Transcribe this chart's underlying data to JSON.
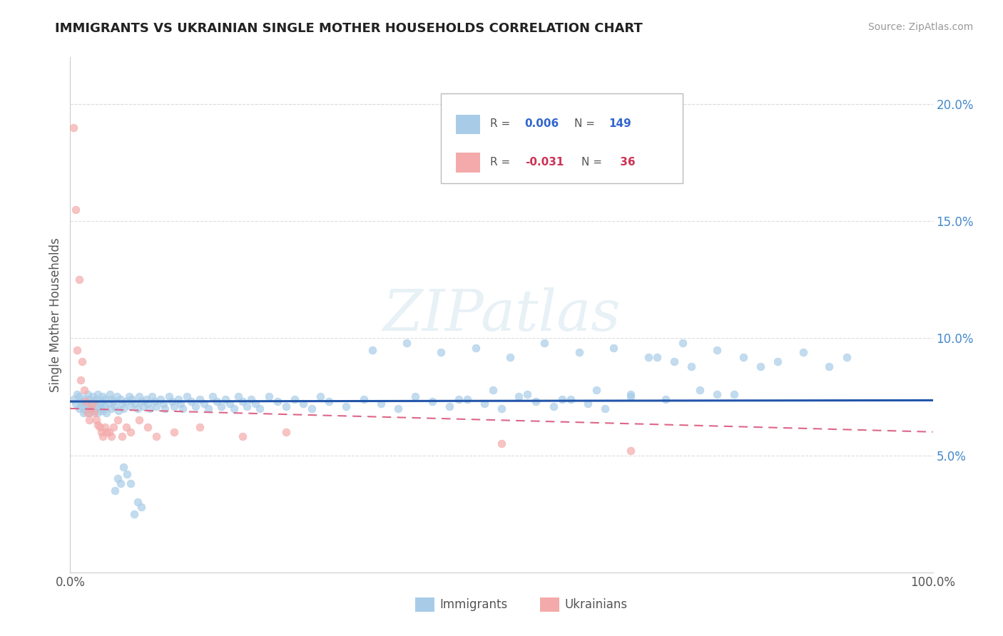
{
  "title": "IMMIGRANTS VS UKRAINIAN SINGLE MOTHER HOUSEHOLDS CORRELATION CHART",
  "source": "Source: ZipAtlas.com",
  "ylabel": "Single Mother Households",
  "xlim": [
    0.0,
    1.0
  ],
  "ylim": [
    0.0,
    0.22
  ],
  "ytick_vals": [
    0.05,
    0.1,
    0.15,
    0.2
  ],
  "ytick_labels": [
    "5.0%",
    "10.0%",
    "15.0%",
    "20.0%"
  ],
  "xtick_vals": [
    0.0,
    1.0
  ],
  "xtick_labels": [
    "0.0%",
    "100.0%"
  ],
  "legend_immigrants": "Immigrants",
  "legend_ukrainians": "Ukrainians",
  "immigrant_color": "#a8cce8",
  "ukrainian_color": "#f4aaaa",
  "trendline_immigrant_color": "#2255aa",
  "trendline_ukrainian_color": "#dd6688",
  "watermark": "ZIPatlas",
  "background_color": "#ffffff",
  "grid_color": "#dddddd",
  "r_imm": 0.006,
  "n_imm": 149,
  "r_ukr": -0.031,
  "n_ukr": 36,
  "immigrants_x": [
    0.004,
    0.006,
    0.008,
    0.01,
    0.01,
    0.012,
    0.014,
    0.015,
    0.016,
    0.018,
    0.018,
    0.02,
    0.02,
    0.022,
    0.022,
    0.024,
    0.026,
    0.026,
    0.028,
    0.028,
    0.03,
    0.03,
    0.032,
    0.032,
    0.034,
    0.036,
    0.036,
    0.038,
    0.038,
    0.04,
    0.04,
    0.042,
    0.044,
    0.046,
    0.048,
    0.05,
    0.052,
    0.054,
    0.056,
    0.058,
    0.06,
    0.062,
    0.065,
    0.068,
    0.07,
    0.072,
    0.075,
    0.078,
    0.08,
    0.082,
    0.085,
    0.088,
    0.09,
    0.092,
    0.095,
    0.098,
    0.1,
    0.105,
    0.108,
    0.11,
    0.115,
    0.118,
    0.12,
    0.125,
    0.128,
    0.13,
    0.135,
    0.14,
    0.145,
    0.15,
    0.155,
    0.16,
    0.165,
    0.17,
    0.175,
    0.18,
    0.185,
    0.19,
    0.195,
    0.2,
    0.205,
    0.21,
    0.215,
    0.22,
    0.23,
    0.24,
    0.25,
    0.26,
    0.27,
    0.28,
    0.29,
    0.3,
    0.32,
    0.34,
    0.36,
    0.38,
    0.4,
    0.42,
    0.44,
    0.46,
    0.48,
    0.5,
    0.52,
    0.54,
    0.56,
    0.58,
    0.6,
    0.62,
    0.65,
    0.68,
    0.7,
    0.72,
    0.75,
    0.78,
    0.8,
    0.82,
    0.85,
    0.88,
    0.9,
    0.35,
    0.39,
    0.43,
    0.47,
    0.51,
    0.55,
    0.59,
    0.63,
    0.67,
    0.71,
    0.75,
    0.45,
    0.49,
    0.53,
    0.57,
    0.61,
    0.65,
    0.69,
    0.73,
    0.77,
    0.048,
    0.052,
    0.055,
    0.058,
    0.062,
    0.066,
    0.07,
    0.074,
    0.078,
    0.082
  ],
  "immigrants_y": [
    0.074,
    0.072,
    0.076,
    0.07,
    0.075,
    0.073,
    0.071,
    0.068,
    0.074,
    0.072,
    0.069,
    0.076,
    0.071,
    0.074,
    0.068,
    0.072,
    0.07,
    0.075,
    0.073,
    0.069,
    0.071,
    0.074,
    0.068,
    0.076,
    0.072,
    0.07,
    0.073,
    0.069,
    0.075,
    0.071,
    0.074,
    0.068,
    0.072,
    0.076,
    0.07,
    0.073,
    0.071,
    0.075,
    0.069,
    0.074,
    0.072,
    0.07,
    0.073,
    0.075,
    0.071,
    0.074,
    0.072,
    0.07,
    0.075,
    0.073,
    0.071,
    0.074,
    0.072,
    0.07,
    0.075,
    0.073,
    0.071,
    0.074,
    0.072,
    0.07,
    0.075,
    0.073,
    0.071,
    0.074,
    0.072,
    0.07,
    0.075,
    0.073,
    0.071,
    0.074,
    0.072,
    0.07,
    0.075,
    0.073,
    0.071,
    0.074,
    0.072,
    0.07,
    0.075,
    0.073,
    0.071,
    0.074,
    0.072,
    0.07,
    0.075,
    0.073,
    0.071,
    0.074,
    0.072,
    0.07,
    0.075,
    0.073,
    0.071,
    0.074,
    0.072,
    0.07,
    0.075,
    0.073,
    0.071,
    0.074,
    0.072,
    0.07,
    0.075,
    0.073,
    0.071,
    0.074,
    0.072,
    0.07,
    0.075,
    0.092,
    0.09,
    0.088,
    0.095,
    0.092,
    0.088,
    0.09,
    0.094,
    0.088,
    0.092,
    0.095,
    0.098,
    0.094,
    0.096,
    0.092,
    0.098,
    0.094,
    0.096,
    0.092,
    0.098,
    0.076,
    0.074,
    0.078,
    0.076,
    0.074,
    0.078,
    0.076,
    0.074,
    0.078,
    0.076,
    0.074,
    0.035,
    0.04,
    0.038,
    0.045,
    0.042,
    0.038,
    0.025,
    0.03,
    0.028
  ],
  "ukrainians_x": [
    0.004,
    0.006,
    0.008,
    0.01,
    0.012,
    0.014,
    0.016,
    0.018,
    0.02,
    0.022,
    0.024,
    0.026,
    0.028,
    0.03,
    0.032,
    0.034,
    0.036,
    0.038,
    0.04,
    0.042,
    0.045,
    0.048,
    0.05,
    0.055,
    0.06,
    0.065,
    0.07,
    0.08,
    0.09,
    0.1,
    0.12,
    0.15,
    0.2,
    0.25,
    0.5,
    0.65
  ],
  "ukrainians_y": [
    0.19,
    0.155,
    0.095,
    0.125,
    0.082,
    0.09,
    0.078,
    0.073,
    0.068,
    0.065,
    0.07,
    0.072,
    0.068,
    0.065,
    0.063,
    0.062,
    0.06,
    0.058,
    0.062,
    0.06,
    0.06,
    0.058,
    0.062,
    0.065,
    0.058,
    0.062,
    0.06,
    0.065,
    0.062,
    0.058,
    0.06,
    0.062,
    0.058,
    0.06,
    0.055,
    0.052
  ]
}
